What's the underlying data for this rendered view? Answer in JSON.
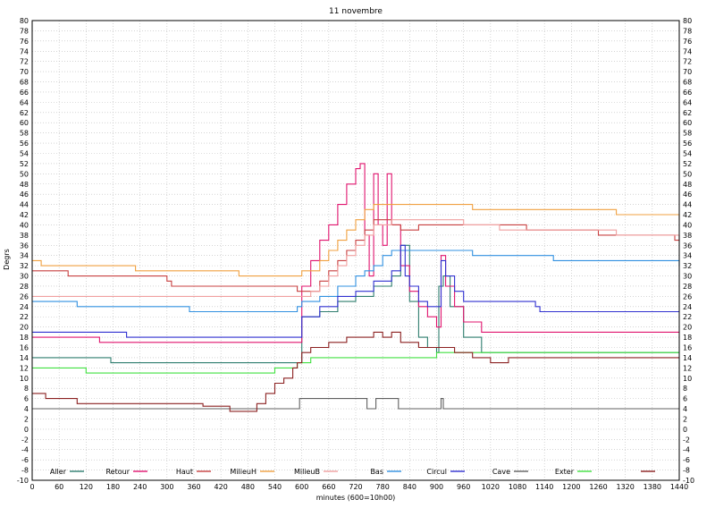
{
  "chart_data": {
    "type": "line",
    "title": "11 novembre",
    "xlabel": "minutes (600=10h00)",
    "ylabel": "Degrs",
    "xlim": [
      0,
      1440
    ],
    "ylim": [
      -10,
      80
    ],
    "x_ticks": [
      0,
      60,
      120,
      180,
      240,
      300,
      360,
      420,
      480,
      540,
      600,
      660,
      720,
      780,
      840,
      900,
      960,
      1020,
      1080,
      1140,
      1200,
      1260,
      1320,
      1380,
      1440
    ],
    "y_ticks": [
      -10,
      -8,
      -6,
      -4,
      -2,
      0,
      2,
      4,
      6,
      8,
      10,
      12,
      14,
      16,
      18,
      20,
      22,
      24,
      26,
      28,
      30,
      32,
      34,
      36,
      38,
      40,
      42,
      44,
      46,
      48,
      50,
      52,
      54,
      56,
      58,
      60,
      62,
      64,
      66,
      68,
      70,
      72,
      74,
      76,
      78,
      80
    ],
    "grid": true,
    "legend_position": "bottom",
    "series": [
      {
        "name": "Aller",
        "color": "#2e7d6e",
        "x": [
          0,
          160,
          175,
          190,
          590,
          600,
          640,
          680,
          720,
          760,
          800,
          820,
          840,
          860,
          880,
          900,
          905,
          915,
          930,
          960,
          1000,
          1440
        ],
        "y": [
          14,
          14,
          13,
          13,
          13,
          22,
          23,
          25,
          26,
          28,
          30,
          36,
          25,
          18,
          16,
          15,
          28,
          30,
          24,
          18,
          15,
          15
        ]
      },
      {
        "name": "Retour",
        "color": "#e0146e",
        "x": [
          0,
          140,
          150,
          590,
          600,
          620,
          640,
          660,
          680,
          700,
          720,
          730,
          740,
          750,
          760,
          770,
          780,
          790,
          800,
          820,
          840,
          860,
          880,
          900,
          910,
          920,
          940,
          960,
          1000,
          1440
        ],
        "y": [
          18,
          18,
          17,
          17,
          28,
          33,
          37,
          40,
          44,
          48,
          51,
          52,
          38,
          30,
          50,
          40,
          36,
          50,
          40,
          32,
          27,
          24,
          22,
          20,
          34,
          28,
          24,
          21,
          19,
          19
        ]
      },
      {
        "name": "Haut",
        "color": "#c84040",
        "x": [
          0,
          80,
          90,
          300,
          310,
          540,
          590,
          600,
          620,
          640,
          660,
          680,
          700,
          720,
          740,
          760,
          780,
          800,
          820,
          840,
          860,
          880,
          900,
          960,
          1020,
          1100,
          1260,
          1320,
          1430,
          1440
        ],
        "y": [
          31,
          30,
          30,
          29,
          28,
          28,
          27,
          27,
          27,
          29,
          31,
          33,
          35,
          37,
          39,
          41,
          41,
          40,
          39,
          39,
          40,
          40,
          40,
          40,
          40,
          39,
          38,
          38,
          37,
          38
        ]
      },
      {
        "name": "MilieuH",
        "color": "#f0a040",
        "x": [
          0,
          20,
          220,
          230,
          450,
          460,
          590,
          600,
          620,
          640,
          660,
          680,
          700,
          720,
          740,
          760,
          780,
          800,
          820,
          840,
          880,
          980,
          1160,
          1300,
          1440
        ],
        "y": [
          33,
          32,
          32,
          31,
          31,
          30,
          30,
          31,
          31,
          33,
          35,
          37,
          39,
          41,
          43,
          44,
          44,
          44,
          44,
          44,
          44,
          43,
          43,
          42,
          41
        ]
      },
      {
        "name": "MilieuB",
        "color": "#f0a0a0",
        "x": [
          0,
          60,
          100,
          590,
          600,
          620,
          640,
          660,
          680,
          700,
          720,
          740,
          760,
          780,
          800,
          840,
          900,
          960,
          1040,
          1120,
          1300,
          1440
        ],
        "y": [
          26,
          26,
          26,
          26,
          26,
          27,
          28,
          30,
          32,
          34,
          36,
          38,
          40,
          40,
          41,
          41,
          41,
          40,
          39,
          39,
          38,
          38
        ]
      },
      {
        "name": "Bas",
        "color": "#3090e0",
        "x": [
          0,
          100,
          110,
          340,
          350,
          420,
          590,
          600,
          640,
          680,
          720,
          740,
          760,
          780,
          800,
          840,
          900,
          980,
          1100,
          1160,
          1280,
          1440
        ],
        "y": [
          25,
          24,
          24,
          24,
          23,
          23,
          24,
          25,
          26,
          28,
          30,
          31,
          32,
          34,
          35,
          35,
          35,
          34,
          34,
          33,
          33,
          32
        ]
      },
      {
        "name": "Circul",
        "color": "#3030d0",
        "x": [
          0,
          200,
          210,
          590,
          600,
          640,
          680,
          720,
          760,
          800,
          820,
          830,
          840,
          860,
          880,
          900,
          910,
          920,
          940,
          960,
          1000,
          1120,
          1130,
          1440
        ],
        "y": [
          19,
          19,
          18,
          18,
          22,
          24,
          26,
          27,
          29,
          31,
          36,
          30,
          28,
          25,
          24,
          24,
          33,
          30,
          27,
          25,
          25,
          24,
          23,
          23
        ]
      },
      {
        "name": "Cave",
        "color": "#606060",
        "x": [
          0,
          590,
          595,
          740,
          745,
          760,
          765,
          810,
          815,
          905,
          910,
          915,
          1440
        ],
        "y": [
          4,
          4,
          6,
          6,
          4,
          4,
          6,
          6,
          4,
          4,
          6,
          4,
          4
        ]
      },
      {
        "name": "Exter",
        "color": "#40e040",
        "x": [
          0,
          60,
          120,
          380,
          440,
          540,
          590,
          620,
          680,
          760,
          840,
          900,
          1000,
          1440
        ],
        "y": [
          12,
          12,
          11,
          11,
          11,
          12,
          13,
          14,
          14,
          14,
          14,
          15,
          15,
          15
        ]
      },
      {
        "name": "",
        "color": "#8b2020",
        "x": [
          0,
          30,
          100,
          180,
          300,
          380,
          440,
          470,
          500,
          520,
          540,
          560,
          580,
          590,
          600,
          620,
          660,
          700,
          740,
          760,
          780,
          800,
          820,
          840,
          860,
          880,
          900,
          940,
          980,
          1020,
          1060,
          1100,
          1160,
          1200,
          1260,
          1300,
          1340,
          1380,
          1420,
          1440
        ],
        "y": [
          7,
          6,
          5,
          5,
          5,
          4.5,
          3.5,
          3.5,
          5,
          7,
          9,
          10,
          12,
          13,
          15,
          16,
          17,
          18,
          18,
          19,
          18,
          19,
          17,
          17,
          16,
          16,
          16,
          15,
          14,
          13,
          14,
          14,
          14,
          14,
          14,
          14,
          14,
          14,
          14,
          14
        ]
      }
    ]
  }
}
